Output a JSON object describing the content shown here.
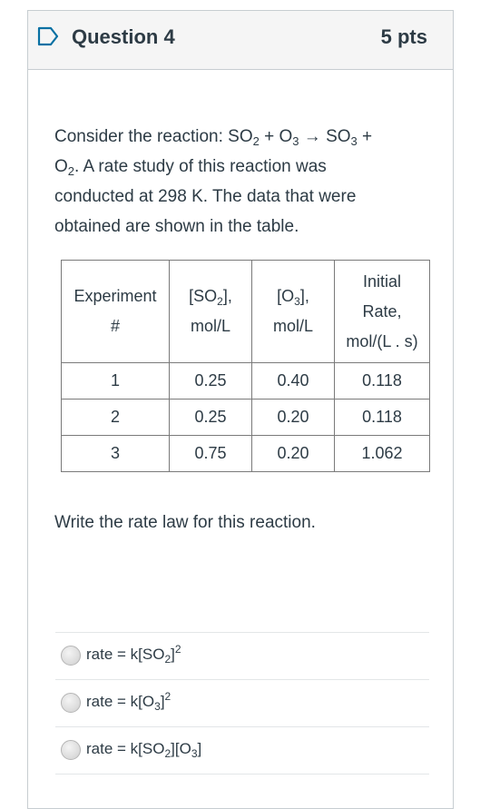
{
  "header": {
    "question_title": "Question 4",
    "points": "5 pts",
    "flag_icon": "bookmark-flag-icon"
  },
  "body": {
    "line1_pre": "Consider the reaction: SO",
    "sub2": "2",
    "plus1": " + O",
    "sub3a": "3",
    "arrow": " → SO",
    "sub3b": "3",
    "plus2": " +",
    "line2_o": "O",
    "line2_sub": "2",
    "line2_rest": ". A rate study of this reaction was",
    "line3": "conducted at 298 K. The data that were",
    "line4": "obtained are shown in the table."
  },
  "table": {
    "headers": {
      "experiment": "Experiment",
      "hash": "#",
      "so2_pre": "[SO",
      "so2_sub": "2",
      "so2_post": "],",
      "so2_unit": "mol/L",
      "o3_pre": "[O",
      "o3_sub": "3",
      "o3_post": "],",
      "o3_unit": "mol/L",
      "rate_1": "Initial",
      "rate_2": "Rate,",
      "rate_3": "mol/(L . s)"
    },
    "rows": [
      {
        "exp": "1",
        "so2": "0.25",
        "o3": "0.40",
        "rate": "0.118"
      },
      {
        "exp": "2",
        "so2": "0.25",
        "o3": "0.20",
        "rate": "0.118"
      },
      {
        "exp": "3",
        "so2": "0.75",
        "o3": "0.20",
        "rate": "1.062"
      }
    ]
  },
  "prompt": "Write the rate law for this reaction.",
  "options": [
    {
      "pre": "rate = k[SO",
      "sub": "2",
      "post": "]",
      "sup": "2"
    },
    {
      "pre": "rate = k[O",
      "sub": "3",
      "post": "]",
      "sup": "2"
    },
    {
      "pre": "rate = k[SO",
      "sub": "2",
      "mid": "][O",
      "sub2": "3",
      "post": "]"
    }
  ]
}
